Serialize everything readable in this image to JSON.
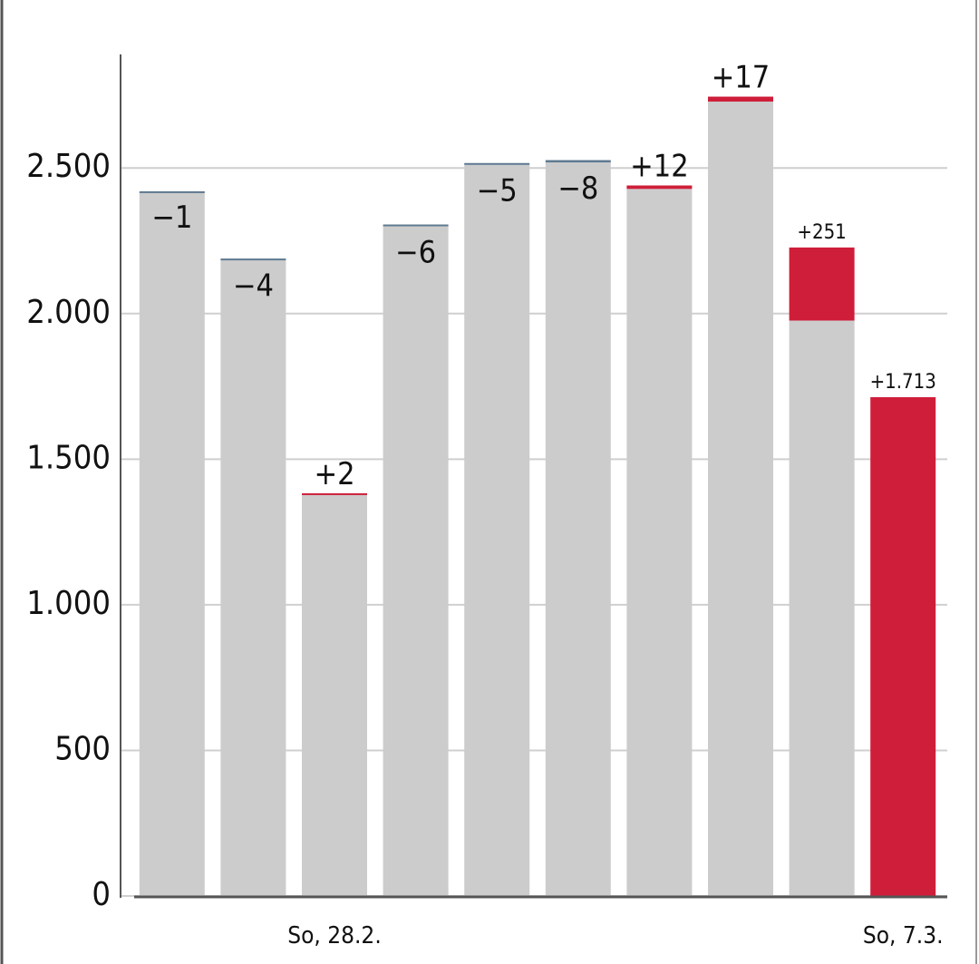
{
  "chart_data": {
    "type": "bar",
    "categories": [
      null,
      null,
      "So, 28.2.",
      null,
      null,
      null,
      null,
      null,
      null,
      "So, 7.3."
    ],
    "values": [
      2419,
      2185,
      1381,
      2300,
      2512,
      2519,
      2428,
      2728,
      1976,
      0
    ],
    "color": "#cccccc",
    "changes": [
      -1,
      -4,
      2,
      -6,
      -5,
      -8,
      12,
      17,
      251,
      1713
    ],
    "value_labels": [
      "−1",
      "−4",
      "+2",
      "−6",
      "−5",
      "−8",
      "+12",
      "+17",
      "+251",
      "+1.713"
    ],
    "positive_color": "#cf1e3a",
    "negative_color": "#5f7a92",
    "ylim": [
      0,
      2890
    ],
    "yticks": [
      0,
      500,
      {
        "value": 1000,
        "label": "1.000"
      },
      {
        "value": 1500,
        "label": "1.500"
      },
      {
        "value": 2000,
        "label": "2.000"
      },
      {
        "value": 2500,
        "label": "2.500"
      }
    ],
    "grid": true
  }
}
